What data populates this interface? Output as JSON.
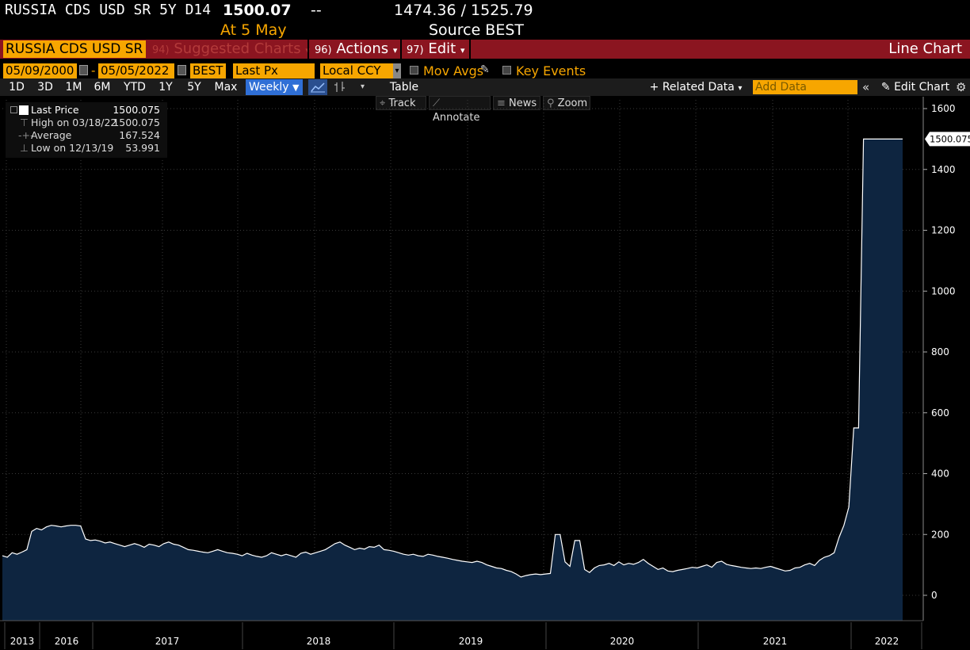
{
  "header": {
    "ticker": "RUSSIA CDS USD SR 5Y D14",
    "last": "1500.07",
    "dashes": "--",
    "range": "1474.36 / 1525.79",
    "at_label": "At 5 May",
    "source": "Source BEST"
  },
  "toolbar": {
    "security": "RUSSIA CDS USD SR",
    "suggested_num": "94)",
    "suggested": "Suggested Charts",
    "actions_num": "96)",
    "actions": "Actions",
    "edit_num": "97)",
    "edit": "Edit",
    "chart_type": "Line Chart"
  },
  "params": {
    "start_date": "05/09/2000",
    "dash": "-",
    "end_date": "05/05/2022",
    "source": "BEST",
    "field": "Last Px",
    "currency": "Local CCY",
    "mov_avgs": "Mov Avgs",
    "key_events": "Key Events"
  },
  "ranges": [
    "1D",
    "3D",
    "1M",
    "6M",
    "YTD",
    "1Y",
    "5Y",
    "Max"
  ],
  "periodicity": "Weekly",
  "table_label": "Table",
  "related_data": "+ Related Data",
  "add_data_placeholder": "Add Data",
  "edit_chart": "Edit Chart",
  "tools": [
    "Track",
    "Annotate",
    "News",
    "Zoom"
  ],
  "legend": [
    {
      "label": "Last Price",
      "value": "1500.075"
    },
    {
      "label": "High on 03/18/22",
      "value": "1500.075"
    },
    {
      "label": "Average",
      "value": "167.524"
    },
    {
      "label": "Low on 12/13/19",
      "value": "53.991"
    }
  ],
  "chart_data": {
    "type": "area",
    "ylim": [
      -80,
      1640
    ],
    "yticks": [
      0,
      200,
      400,
      600,
      800,
      1000,
      1200,
      1400,
      1600
    ],
    "xlabels": [
      "2013",
      "2016",
      "2017",
      "2018",
      "2019",
      "2020",
      "2021",
      "2022"
    ],
    "last_value_label": "1500.075",
    "series": [
      {
        "values": [
          130,
          125,
          140,
          135,
          142,
          150,
          210,
          220,
          215,
          225,
          230,
          228,
          225,
          228,
          230,
          230,
          228,
          185,
          180,
          182,
          178,
          172,
          175,
          170,
          165,
          160,
          165,
          170,
          165,
          158,
          168,
          165,
          160,
          170,
          175,
          168,
          165,
          158,
          150,
          148,
          145,
          142,
          140,
          145,
          150,
          145,
          140,
          138,
          135,
          130,
          138,
          132,
          128,
          125,
          130,
          140,
          135,
          130,
          135,
          130,
          125,
          138,
          142,
          135,
          140,
          145,
          150,
          160,
          170,
          175,
          165,
          158,
          150,
          155,
          152,
          160,
          158,
          165,
          150,
          148,
          145,
          140,
          135,
          132,
          135,
          130,
          128,
          135,
          132,
          128,
          125,
          122,
          118,
          115,
          112,
          110,
          108,
          112,
          108,
          100,
          95,
          90,
          88,
          82,
          78,
          70,
          60,
          65,
          68,
          70,
          68,
          70,
          72,
          200,
          200,
          110,
          95,
          180,
          180,
          85,
          75,
          90,
          98,
          100,
          105,
          98,
          110,
          100,
          105,
          102,
          108,
          118,
          105,
          95,
          85,
          90,
          80,
          78,
          82,
          85,
          88,
          92,
          90,
          95,
          100,
          92,
          108,
          112,
          102,
          98,
          95,
          92,
          90,
          88,
          90,
          88,
          92,
          95,
          90,
          85,
          80,
          82,
          90,
          92,
          100,
          105,
          98,
          115,
          125,
          130,
          140,
          190,
          230,
          290,
          550,
          550,
          1500,
          1500,
          1500,
          1500,
          1500,
          1500,
          1500,
          1500,
          1500
        ]
      }
    ]
  }
}
